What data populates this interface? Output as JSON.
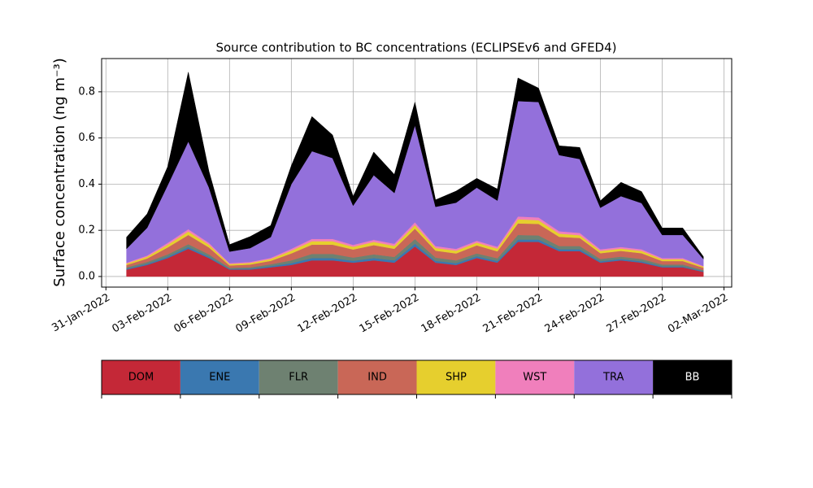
{
  "chart_data": {
    "type": "stacked_area",
    "title": "Source contribution to BC concentrations (ECLIPSEv6 and GFED4)",
    "y_label": "Surface concentration (ng m⁻³)",
    "x": [
      "2022-02-01",
      "2022-02-02",
      "2022-02-03",
      "2022-02-04",
      "2022-02-05",
      "2022-02-06",
      "2022-02-07",
      "2022-02-08",
      "2022-02-09",
      "2022-02-10",
      "2022-02-11",
      "2022-02-12",
      "2022-02-13",
      "2022-02-14",
      "2022-02-15",
      "2022-02-16",
      "2022-02-17",
      "2022-02-18",
      "2022-02-19",
      "2022-02-20",
      "2022-02-21",
      "2022-02-22",
      "2022-02-23",
      "2022-02-24",
      "2022-02-25",
      "2022-02-26",
      "2022-02-27",
      "2022-02-28",
      "2022-03-01"
    ],
    "xlim": [
      "2022-01-30T19:00",
      "2022-03-02T09:00"
    ],
    "xticks": [
      {
        "value": "2022-01-31",
        "label": "31-Jan-2022"
      },
      {
        "value": "2022-02-03",
        "label": "03-Feb-2022"
      },
      {
        "value": "2022-02-06",
        "label": "06-Feb-2022"
      },
      {
        "value": "2022-02-09",
        "label": "09-Feb-2022"
      },
      {
        "value": "2022-02-12",
        "label": "12-Feb-2022"
      },
      {
        "value": "2022-02-15",
        "label": "15-Feb-2022"
      },
      {
        "value": "2022-02-18",
        "label": "18-Feb-2022"
      },
      {
        "value": "2022-02-21",
        "label": "21-Feb-2022"
      },
      {
        "value": "2022-02-24",
        "label": "24-Feb-2022"
      },
      {
        "value": "2022-02-27",
        "label": "27-Feb-2022"
      },
      {
        "value": "2022-03-02",
        "label": "02-Mar-2022"
      }
    ],
    "ylim": [
      -0.046,
      0.944
    ],
    "yticks": [
      {
        "value": 0,
        "label": "0.0"
      },
      {
        "value": 0.2,
        "label": "0.2"
      },
      {
        "value": 0.4,
        "label": "0.4"
      },
      {
        "value": 0.6,
        "label": "0.6"
      },
      {
        "value": 0.8,
        "label": "0.8"
      }
    ],
    "grid": true,
    "series": [
      {
        "name": "DOM",
        "color": "#c42837",
        "values": [
          0.03,
          0.05,
          0.08,
          0.12,
          0.08,
          0.03,
          0.03,
          0.04,
          0.05,
          0.07,
          0.07,
          0.06,
          0.07,
          0.06,
          0.13,
          0.06,
          0.05,
          0.08,
          0.06,
          0.15,
          0.15,
          0.11,
          0.11,
          0.06,
          0.07,
          0.06,
          0.04,
          0.04,
          0.02
        ]
      },
      {
        "name": "ENE",
        "color": "#3a78b0",
        "values": [
          0.004,
          0.005,
          0.006,
          0.008,
          0.006,
          0.003,
          0.004,
          0.005,
          0.008,
          0.01,
          0.01,
          0.008,
          0.01,
          0.01,
          0.012,
          0.008,
          0.008,
          0.008,
          0.007,
          0.01,
          0.01,
          0.008,
          0.008,
          0.006,
          0.006,
          0.006,
          0.004,
          0.004,
          0.003
        ]
      },
      {
        "name": "FLR",
        "color": "#6e8171",
        "values": [
          0.006,
          0.008,
          0.01,
          0.012,
          0.01,
          0.005,
          0.006,
          0.008,
          0.012,
          0.018,
          0.018,
          0.014,
          0.016,
          0.015,
          0.02,
          0.014,
          0.012,
          0.012,
          0.012,
          0.02,
          0.018,
          0.014,
          0.014,
          0.01,
          0.01,
          0.01,
          0.008,
          0.008,
          0.005
        ]
      },
      {
        "name": "IND",
        "color": "#c96757",
        "values": [
          0.01,
          0.015,
          0.03,
          0.04,
          0.03,
          0.01,
          0.012,
          0.015,
          0.03,
          0.04,
          0.04,
          0.035,
          0.04,
          0.035,
          0.045,
          0.03,
          0.03,
          0.035,
          0.03,
          0.05,
          0.05,
          0.04,
          0.035,
          0.025,
          0.025,
          0.025,
          0.015,
          0.015,
          0.01
        ]
      },
      {
        "name": "SHP",
        "color": "#e6cf2e",
        "values": [
          0.006,
          0.008,
          0.012,
          0.015,
          0.012,
          0.006,
          0.007,
          0.008,
          0.012,
          0.015,
          0.015,
          0.012,
          0.014,
          0.013,
          0.016,
          0.012,
          0.012,
          0.012,
          0.012,
          0.018,
          0.016,
          0.014,
          0.012,
          0.01,
          0.01,
          0.01,
          0.008,
          0.008,
          0.005
        ]
      },
      {
        "name": "WST",
        "color": "#f07fbc",
        "values": [
          0.004,
          0.005,
          0.008,
          0.01,
          0.008,
          0.004,
          0.004,
          0.005,
          0.008,
          0.01,
          0.01,
          0.008,
          0.009,
          0.009,
          0.012,
          0.008,
          0.008,
          0.008,
          0.008,
          0.012,
          0.012,
          0.01,
          0.01,
          0.007,
          0.007,
          0.007,
          0.005,
          0.005,
          0.003
        ]
      },
      {
        "name": "TRA",
        "color": "#9370db",
        "values": [
          0.06,
          0.12,
          0.25,
          0.38,
          0.24,
          0.05,
          0.06,
          0.09,
          0.28,
          0.38,
          0.35,
          0.17,
          0.28,
          0.22,
          0.42,
          0.17,
          0.2,
          0.23,
          0.2,
          0.5,
          0.5,
          0.33,
          0.32,
          0.18,
          0.22,
          0.2,
          0.1,
          0.1,
          0.03
        ]
      },
      {
        "name": "BB",
        "color": "#000000",
        "values": [
          0.05,
          0.06,
          0.08,
          0.3,
          0.07,
          0.03,
          0.05,
          0.05,
          0.08,
          0.15,
          0.1,
          0.04,
          0.1,
          0.08,
          0.1,
          0.03,
          0.05,
          0.04,
          0.05,
          0.1,
          0.06,
          0.04,
          0.05,
          0.03,
          0.06,
          0.05,
          0.03,
          0.03,
          0.01
        ]
      }
    ]
  }
}
